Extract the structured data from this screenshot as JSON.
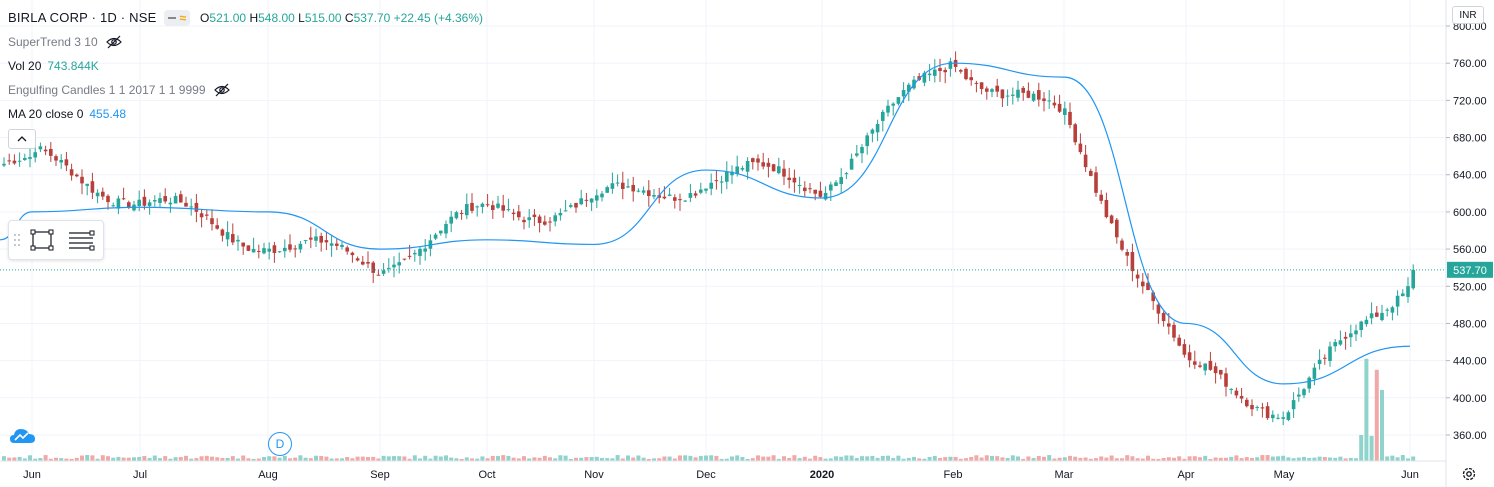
{
  "header": {
    "symbol": "BIRLA CORP · 1D · NSE",
    "ohlc": {
      "open_label": "O",
      "open": "521.00",
      "high_label": "H",
      "high": "548.00",
      "low_label": "L",
      "low": "515.00",
      "close_label": "C",
      "close": "537.70",
      "change": "+22.45 (+4.36%)"
    }
  },
  "indicators": [
    {
      "label": "SuperTrend 3 10",
      "value": "",
      "hidden": true
    },
    {
      "label": "Vol 20",
      "value": "743.844K",
      "hidden": false
    },
    {
      "label": "Engulfing Candles 1 1 2017 1 1 9999",
      "value": "",
      "hidden": true
    },
    {
      "label": "MA 20 close 0",
      "value": "455.48",
      "hidden": false
    }
  ],
  "currency": "INR",
  "earnings_marker": "D",
  "icons": [
    "eye-off-icon",
    "chevron-up-icon",
    "rectangle-tool-icon",
    "indicator-lines-icon",
    "tradingview-cloud-icon",
    "gear-icon"
  ],
  "colors": {
    "up": "#26a69a",
    "down": "#b8403c",
    "ma": "#2196f3",
    "vol_up": "#8fd3cc",
    "vol_down": "#f0a9a7",
    "grid": "#f0f3fa"
  },
  "chart_data": {
    "type": "candlestick",
    "title": "BIRLA CORP · 1D · NSE",
    "y_axis": {
      "range": [
        332,
        828
      ],
      "ticks": [
        360,
        400,
        440,
        480,
        520,
        560,
        600,
        640,
        680,
        720,
        760,
        800
      ]
    },
    "x_axis": {
      "tick_labels": [
        "Jun",
        "Jul",
        "Aug",
        "Sep",
        "Oct",
        "Nov",
        "Dec",
        "2020",
        "Feb",
        "Mar",
        "Apr",
        "May",
        "Jun"
      ]
    },
    "last_price": 537.7,
    "last_price_label": "537.70",
    "monthly_anchors": [
      {
        "month": "Jun",
        "price": 650
      },
      {
        "month": "Jul",
        "price": 605
      },
      {
        "month": "Aug",
        "price": 580
      },
      {
        "month": "Sep",
        "price": 540
      },
      {
        "month": "Oct",
        "price": 590
      },
      {
        "month": "Nov",
        "price": 620
      },
      {
        "month": "Dec",
        "price": 640
      },
      {
        "month": "2020",
        "price": 620
      },
      {
        "month": "Feb",
        "price": 775
      },
      {
        "month": "Mar",
        "price": 700
      },
      {
        "month": "Apr",
        "price": 420
      },
      {
        "month": "May",
        "price": 395
      },
      {
        "month": "Jun",
        "price": 537.7
      }
    ],
    "ma_series": {
      "name": "MA 20 close 0",
      "last": 455.48,
      "points": [
        {
          "month": "Jun",
          "value": 600
        },
        {
          "month": "Jul",
          "value": 605
        },
        {
          "month": "Aug",
          "value": 600
        },
        {
          "month": "Sep",
          "value": 560
        },
        {
          "month": "Oct",
          "value": 570
        },
        {
          "month": "Nov",
          "value": 565
        },
        {
          "month": "Dec",
          "value": 645
        },
        {
          "month": "2020",
          "value": 615
        },
        {
          "month": "Feb",
          "value": 760
        },
        {
          "month": "Mar",
          "value": 745
        },
        {
          "month": "Apr",
          "value": 480
        },
        {
          "month": "May",
          "value": 415
        },
        {
          "month": "Jun",
          "value": 455.48
        }
      ]
    },
    "volume": {
      "name": "Vol 20",
      "last": "743.844K"
    },
    "grid": true
  }
}
